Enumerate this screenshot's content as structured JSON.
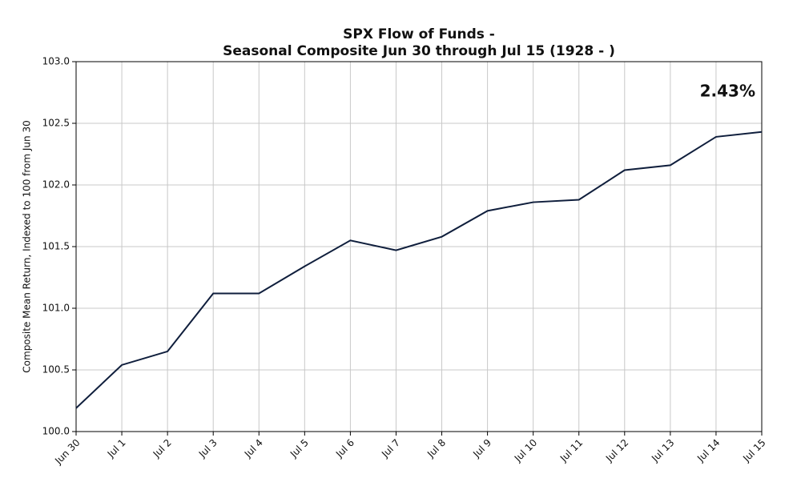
{
  "chart_data": {
    "type": "line",
    "title": [
      "SPX Flow of Funds -",
      "Seasonal Composite Jun 30 through Jul 15 (1928 - )"
    ],
    "ylabel": "Composite Mean Return, Indexed to 100 from Jun 30",
    "annotation": "2.43%",
    "categories": [
      "Jun 30",
      "Jul 1",
      "Jul 2",
      "Jul 3",
      "Jul 4",
      "Jul 5",
      "Jul 6",
      "Jul 7",
      "Jul 8",
      "Jul 9",
      "Jul 10",
      "Jul 11",
      "Jul 12",
      "Jul 13",
      "Jul 14",
      "Jul 15"
    ],
    "values": [
      100.19,
      100.54,
      100.65,
      101.12,
      101.12,
      101.34,
      101.55,
      101.47,
      101.58,
      101.79,
      101.86,
      101.88,
      102.12,
      102.16,
      102.39,
      102.43
    ],
    "color": "#0f1e3c",
    "ylim": [
      100,
      103
    ],
    "yticks": [
      {
        "value": 100,
        "label": "100.0"
      },
      {
        "value": 100.5,
        "label": "100.5"
      },
      {
        "value": 101,
        "label": "101.0"
      },
      {
        "value": 101.5,
        "label": "101.5"
      },
      {
        "value": 102,
        "label": "102.0"
      },
      {
        "value": 102.5,
        "label": "102.5"
      },
      {
        "value": 103,
        "label": "103.0"
      }
    ],
    "grid": true
  }
}
